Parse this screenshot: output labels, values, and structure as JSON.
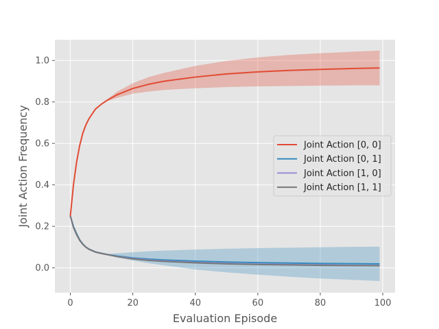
{
  "chart_data": {
    "type": "line",
    "title": "",
    "xlabel": "Evaluation Episode",
    "ylabel": "Joint Action Frequency",
    "xlim": [
      -4.95,
      103.95
    ],
    "ylim": [
      -0.12,
      1.1
    ],
    "xticks": [
      "0",
      "20",
      "40",
      "60",
      "80",
      "100"
    ],
    "yticks": [
      "0.0",
      "0.2",
      "0.4",
      "0.6",
      "0.8",
      "1.0"
    ],
    "grid": true,
    "style": "ggplot",
    "legend_position": "center-right",
    "colors": {
      "red": "#E24A33",
      "blue": "#348ABD",
      "purple": "#988ED5",
      "gray": "#777777",
      "background": "#E5E5E5"
    },
    "series": [
      {
        "name": "Joint Action [0, 0]",
        "color": "#E24A33",
        "x": [
          0,
          1,
          2,
          3,
          4,
          5,
          6,
          8,
          10,
          12,
          15,
          20,
          25,
          30,
          40,
          50,
          60,
          70,
          80,
          90,
          99
        ],
        "mean": [
          0.25,
          0.4,
          0.51,
          0.59,
          0.65,
          0.69,
          0.72,
          0.765,
          0.79,
          0.81,
          0.835,
          0.865,
          0.885,
          0.9,
          0.92,
          0.935,
          0.945,
          0.952,
          0.957,
          0.961,
          0.964
        ],
        "band_low": [
          0.25,
          0.4,
          0.51,
          0.59,
          0.65,
          0.69,
          0.72,
          0.765,
          0.79,
          0.805,
          0.82,
          0.84,
          0.85,
          0.858,
          0.866,
          0.872,
          0.875,
          0.877,
          0.879,
          0.88,
          0.88
        ],
        "band_high": [
          0.25,
          0.4,
          0.51,
          0.59,
          0.65,
          0.69,
          0.72,
          0.765,
          0.79,
          0.815,
          0.85,
          0.89,
          0.92,
          0.94,
          0.974,
          0.998,
          1.015,
          1.027,
          1.035,
          1.042,
          1.048
        ]
      },
      {
        "name": "Joint Action [0, 1]",
        "color": "#348ABD",
        "x": [
          0,
          1,
          2,
          3,
          4,
          5,
          6,
          8,
          10,
          12,
          15,
          20,
          25,
          30,
          40,
          50,
          60,
          70,
          80,
          90,
          99
        ],
        "mean": [
          0.25,
          0.2,
          0.165,
          0.135,
          0.115,
          0.1,
          0.09,
          0.077,
          0.07,
          0.064,
          0.057,
          0.048,
          0.042,
          0.038,
          0.032,
          0.028,
          0.025,
          0.023,
          0.021,
          0.02,
          0.019
        ],
        "band_low": [
          0.25,
          0.2,
          0.165,
          0.135,
          0.115,
          0.1,
          0.09,
          0.077,
          0.07,
          0.062,
          0.05,
          0.035,
          0.022,
          0.012,
          -0.008,
          -0.022,
          -0.033,
          -0.043,
          -0.052,
          -0.058,
          -0.064
        ],
        "band_high": [
          0.25,
          0.2,
          0.165,
          0.135,
          0.115,
          0.1,
          0.09,
          0.077,
          0.07,
          0.066,
          0.07,
          0.075,
          0.08,
          0.083,
          0.088,
          0.092,
          0.095,
          0.097,
          0.099,
          0.101,
          0.102
        ]
      },
      {
        "name": "Joint Action [1, 0]",
        "color": "#988ED5",
        "x": [
          0,
          1,
          2,
          3,
          4,
          5,
          6,
          8,
          10,
          12,
          15,
          20,
          25,
          30,
          40,
          50,
          60,
          70,
          80,
          90,
          99
        ],
        "mean": [
          0.25,
          0.195,
          0.16,
          0.132,
          0.113,
          0.099,
          0.089,
          0.076,
          0.069,
          0.063,
          0.055,
          0.045,
          0.038,
          0.033,
          0.026,
          0.021,
          0.018,
          0.016,
          0.014,
          0.012,
          0.011
        ]
      },
      {
        "name": "Joint Action [1, 1]",
        "color": "#777777",
        "x": [
          0,
          1,
          2,
          3,
          4,
          5,
          6,
          8,
          10,
          12,
          15,
          20,
          25,
          30,
          40,
          50,
          60,
          70,
          80,
          90,
          99
        ],
        "mean": [
          0.25,
          0.195,
          0.16,
          0.132,
          0.113,
          0.099,
          0.089,
          0.076,
          0.069,
          0.063,
          0.054,
          0.043,
          0.036,
          0.031,
          0.024,
          0.019,
          0.016,
          0.014,
          0.012,
          0.011,
          0.01
        ]
      }
    ]
  }
}
